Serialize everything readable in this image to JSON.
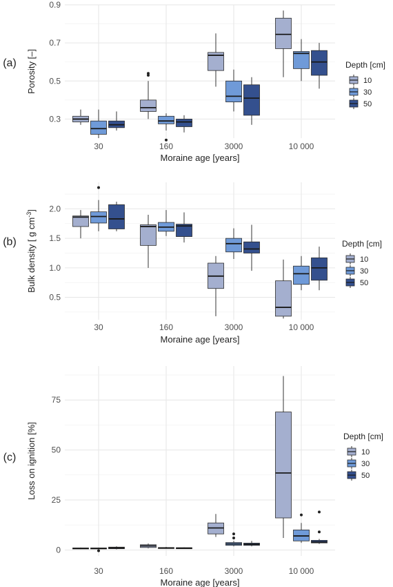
{
  "palette": {
    "depth_colors": [
      "#a4afcf",
      "#6f9ad8",
      "#34508e"
    ],
    "median": "#1a1a1a",
    "whisker": "#333333",
    "grid_major": "#e6e6e6",
    "grid_minor": "#f2f2f2",
    "tick_text": "#4d4d4d"
  },
  "chart_data": [
    {
      "type": "box",
      "panel_label": "(a)",
      "xlabel": "Moraine age [years]",
      "ylabel": "Porosity [–]",
      "categories": [
        "30",
        "160",
        "3000",
        "10 000"
      ],
      "y_ticks": [
        "0.3",
        "0.5",
        "0.7",
        "0.9"
      ],
      "y_tick_values": [
        0.3,
        0.5,
        0.7,
        0.9
      ],
      "ylim": [
        0.2,
        0.9
      ],
      "grid": true,
      "legend_placement": "right",
      "legend_title": "Depth [cm]",
      "series": [
        {
          "name": "10",
          "boxes": [
            {
              "min": 0.27,
              "q1": 0.285,
              "median": 0.3,
              "q3": 0.315,
              "max": 0.35,
              "outliers": []
            },
            {
              "min": 0.3,
              "q1": 0.34,
              "median": 0.36,
              "q3": 0.4,
              "max": 0.5,
              "outliers": [
                0.53,
                0.54
              ]
            },
            {
              "min": 0.47,
              "q1": 0.555,
              "median": 0.635,
              "q3": 0.65,
              "max": 0.75,
              "outliers": []
            },
            {
              "min": 0.52,
              "q1": 0.67,
              "median": 0.745,
              "q3": 0.83,
              "max": 0.87,
              "outliers": []
            }
          ]
        },
        {
          "name": "30",
          "boxes": [
            {
              "min": 0.2,
              "q1": 0.22,
              "median": 0.25,
              "q3": 0.29,
              "max": 0.35,
              "outliers": []
            },
            {
              "min": 0.24,
              "q1": 0.275,
              "median": 0.29,
              "q3": 0.315,
              "max": 0.33,
              "outliers": [
                0.19
              ]
            },
            {
              "min": 0.34,
              "q1": 0.39,
              "median": 0.42,
              "q3": 0.5,
              "max": 0.56,
              "outliers": []
            },
            {
              "min": 0.5,
              "q1": 0.565,
              "median": 0.645,
              "q3": 0.655,
              "max": 0.72,
              "outliers": []
            }
          ]
        },
        {
          "name": "50",
          "boxes": [
            {
              "min": 0.24,
              "q1": 0.255,
              "median": 0.27,
              "q3": 0.29,
              "max": 0.34,
              "outliers": []
            },
            {
              "min": 0.23,
              "q1": 0.26,
              "median": 0.285,
              "q3": 0.3,
              "max": 0.32,
              "outliers": []
            },
            {
              "min": 0.27,
              "q1": 0.32,
              "median": 0.41,
              "q3": 0.48,
              "max": 0.52,
              "outliers": []
            },
            {
              "min": 0.46,
              "q1": 0.53,
              "median": 0.6,
              "q3": 0.66,
              "max": 0.7,
              "outliers": []
            }
          ]
        }
      ]
    },
    {
      "type": "box",
      "panel_label": "(b)",
      "xlabel": "Moraine age [years]",
      "ylabel_main": "Bulk density [ g cm",
      "ylabel_sup": "-3",
      "ylabel_end": "]",
      "categories": [
        "30",
        "160",
        "3000",
        "10 000"
      ],
      "y_ticks": [
        "0.5",
        "1.0",
        "1.5",
        "2.0"
      ],
      "y_tick_values": [
        0.5,
        1.0,
        1.5,
        2.0
      ],
      "ylim": [
        0.12,
        2.45
      ],
      "grid": true,
      "legend_placement": "right",
      "legend_title": "Depth [cm]",
      "series": [
        {
          "name": "10",
          "boxes": [
            {
              "min": 1.5,
              "q1": 1.7,
              "median": 1.86,
              "q3": 1.88,
              "max": 1.98,
              "outliers": []
            },
            {
              "min": 1.0,
              "q1": 1.38,
              "median": 1.7,
              "q3": 1.73,
              "max": 1.9,
              "outliers": []
            },
            {
              "min": 0.18,
              "q1": 0.65,
              "median": 0.86,
              "q3": 1.08,
              "max": 1.2,
              "outliers": []
            },
            {
              "min": 0.14,
              "q1": 0.18,
              "median": 0.33,
              "q3": 0.78,
              "max": 1.14,
              "outliers": []
            }
          ]
        },
        {
          "name": "30",
          "boxes": [
            {
              "min": 1.62,
              "q1": 1.76,
              "median": 1.87,
              "q3": 1.95,
              "max": 2.15,
              "outliers": [
                2.36
              ]
            },
            {
              "min": 1.54,
              "q1": 1.62,
              "median": 1.69,
              "q3": 1.77,
              "max": 1.98,
              "outliers": []
            },
            {
              "min": 1.15,
              "q1": 1.27,
              "median": 1.41,
              "q3": 1.5,
              "max": 1.67,
              "outliers": []
            },
            {
              "min": 0.62,
              "q1": 0.72,
              "median": 0.9,
              "q3": 1.03,
              "max": 1.2,
              "outliers": []
            }
          ]
        },
        {
          "name": "50",
          "boxes": [
            {
              "min": 1.62,
              "q1": 1.66,
              "median": 1.83,
              "q3": 2.07,
              "max": 2.12,
              "outliers": []
            },
            {
              "min": 1.43,
              "q1": 1.53,
              "median": 1.71,
              "q3": 1.74,
              "max": 1.94,
              "outliers": []
            },
            {
              "min": 0.95,
              "q1": 1.25,
              "median": 1.32,
              "q3": 1.44,
              "max": 1.73,
              "outliers": []
            },
            {
              "min": 0.62,
              "q1": 0.79,
              "median": 1.0,
              "q3": 1.17,
              "max": 1.36,
              "outliers": []
            }
          ]
        }
      ]
    },
    {
      "type": "box",
      "panel_label": "(c)",
      "xlabel": "Moraine age [years]",
      "ylabel": "Loss on ignition [%]",
      "categories": [
        "30",
        "160",
        "3000",
        "10 000"
      ],
      "y_ticks": [
        "0",
        "25",
        "50",
        "75"
      ],
      "y_tick_values": [
        0,
        25,
        50,
        75
      ],
      "ylim": [
        -3,
        92
      ],
      "grid": true,
      "legend_placement": "right",
      "legend_title": "Depth [cm]",
      "series": [
        {
          "name": "10",
          "boxes": [
            {
              "min": 0.4,
              "q1": 0.6,
              "median": 0.8,
              "q3": 1.0,
              "max": 1.2,
              "outliers": []
            },
            {
              "min": 0.8,
              "q1": 1.2,
              "median": 2.0,
              "q3": 2.6,
              "max": 3.2,
              "outliers": []
            },
            {
              "min": 6.5,
              "q1": 8.0,
              "median": 11.0,
              "q3": 13.5,
              "max": 18.0,
              "outliers": []
            },
            {
              "min": 6.0,
              "q1": 16.0,
              "median": 38.5,
              "q3": 69.0,
              "max": 87.0,
              "outliers": []
            }
          ]
        },
        {
          "name": "30",
          "boxes": [
            {
              "min": 0.4,
              "q1": 0.6,
              "median": 0.8,
              "q3": 1.0,
              "max": 1.2,
              "outliers": [
                -0.4
              ]
            },
            {
              "min": 0.6,
              "q1": 0.8,
              "median": 1.0,
              "q3": 1.2,
              "max": 1.5,
              "outliers": []
            },
            {
              "min": 1.8,
              "q1": 2.3,
              "median": 3.0,
              "q3": 3.7,
              "max": 4.5,
              "outliers": [
                6.0,
                8.0
              ]
            },
            {
              "min": 3.5,
              "q1": 4.5,
              "median": 7.0,
              "q3": 10.0,
              "max": 13.5,
              "outliers": [
                17.5
              ]
            }
          ]
        },
        {
          "name": "50",
          "boxes": [
            {
              "min": 0.3,
              "q1": 0.6,
              "median": 1.0,
              "q3": 1.4,
              "max": 1.8,
              "outliers": []
            },
            {
              "min": 0.5,
              "q1": 0.7,
              "median": 0.9,
              "q3": 1.1,
              "max": 1.3,
              "outliers": []
            },
            {
              "min": 1.8,
              "q1": 2.3,
              "median": 2.8,
              "q3": 3.4,
              "max": 4.5,
              "outliers": []
            },
            {
              "min": 3.0,
              "q1": 3.5,
              "median": 4.0,
              "q3": 4.8,
              "max": 5.5,
              "outliers": [
                9.0,
                19.0
              ]
            }
          ]
        }
      ]
    }
  ]
}
